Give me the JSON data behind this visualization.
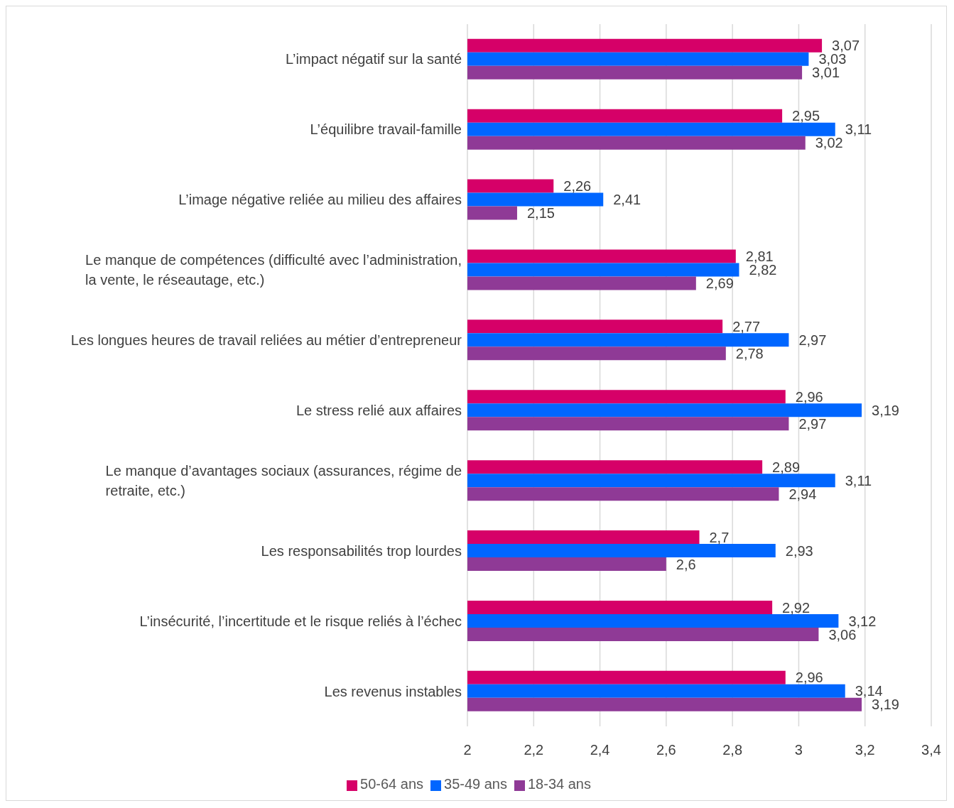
{
  "chart_data": {
    "type": "bar",
    "orientation": "horizontal",
    "categories": [
      "L’impact négatif sur la santé",
      "L’équilibre travail-famille",
      "L’image négative reliée au milieu des affaires",
      "Le manque de compétences (difficulté avec l’administration, la vente, le réseautage, etc.)",
      "Les longues heures de travail reliées au métier d’entrepreneur",
      "Le stress relié aux affaires",
      "Le manque d’avantages sociaux (assurances, régime de retraite, etc.)",
      "Les responsabilités trop lourdes",
      "L’insécurité, l’incertitude et le risque reliés à l’échec",
      "Les revenus instables"
    ],
    "series": [
      {
        "name": "50-64 ans",
        "color": "#d60068",
        "values": [
          3.07,
          2.95,
          2.26,
          2.81,
          2.77,
          2.96,
          2.89,
          2.7,
          2.92,
          2.96
        ],
        "value_labels": [
          "3,07",
          "2,95",
          "2,26",
          "2,81",
          "2,77",
          "2,96",
          "2,89",
          "2,7",
          "2,92",
          "2,96"
        ]
      },
      {
        "name": "35-49 ans",
        "color": "#0066ff",
        "values": [
          3.03,
          3.11,
          2.41,
          2.82,
          2.97,
          3.19,
          3.11,
          2.93,
          3.12,
          3.14
        ],
        "value_labels": [
          "3,03",
          "3,11",
          "2,41",
          "2,82",
          "2,97",
          "3,19",
          "3,11",
          "2,93",
          "3,12",
          "3,14"
        ]
      },
      {
        "name": "18-34 ans",
        "color": "#8f3a96",
        "values": [
          3.01,
          3.02,
          2.15,
          2.69,
          2.78,
          2.97,
          2.94,
          2.6,
          3.06,
          3.19
        ],
        "value_labels": [
          "3,01",
          "3,02",
          "2,15",
          "2,69",
          "2,78",
          "2,97",
          "2,94",
          "2,6",
          "3,06",
          "3,19"
        ]
      }
    ],
    "xlim": [
      2,
      3.4
    ],
    "xticks": [
      2,
      {
        "value": 2.2,
        "label": "2,2"
      },
      {
        "value": 2.4,
        "label": "2,4"
      },
      {
        "value": 2.6,
        "label": "2,6"
      },
      {
        "value": 2.8,
        "label": "2,8"
      },
      3,
      {
        "value": 3.2,
        "label": "3,2"
      },
      {
        "value": 3.4,
        "label": "3,4"
      }
    ],
    "grid": "x",
    "legend": "bottom"
  }
}
